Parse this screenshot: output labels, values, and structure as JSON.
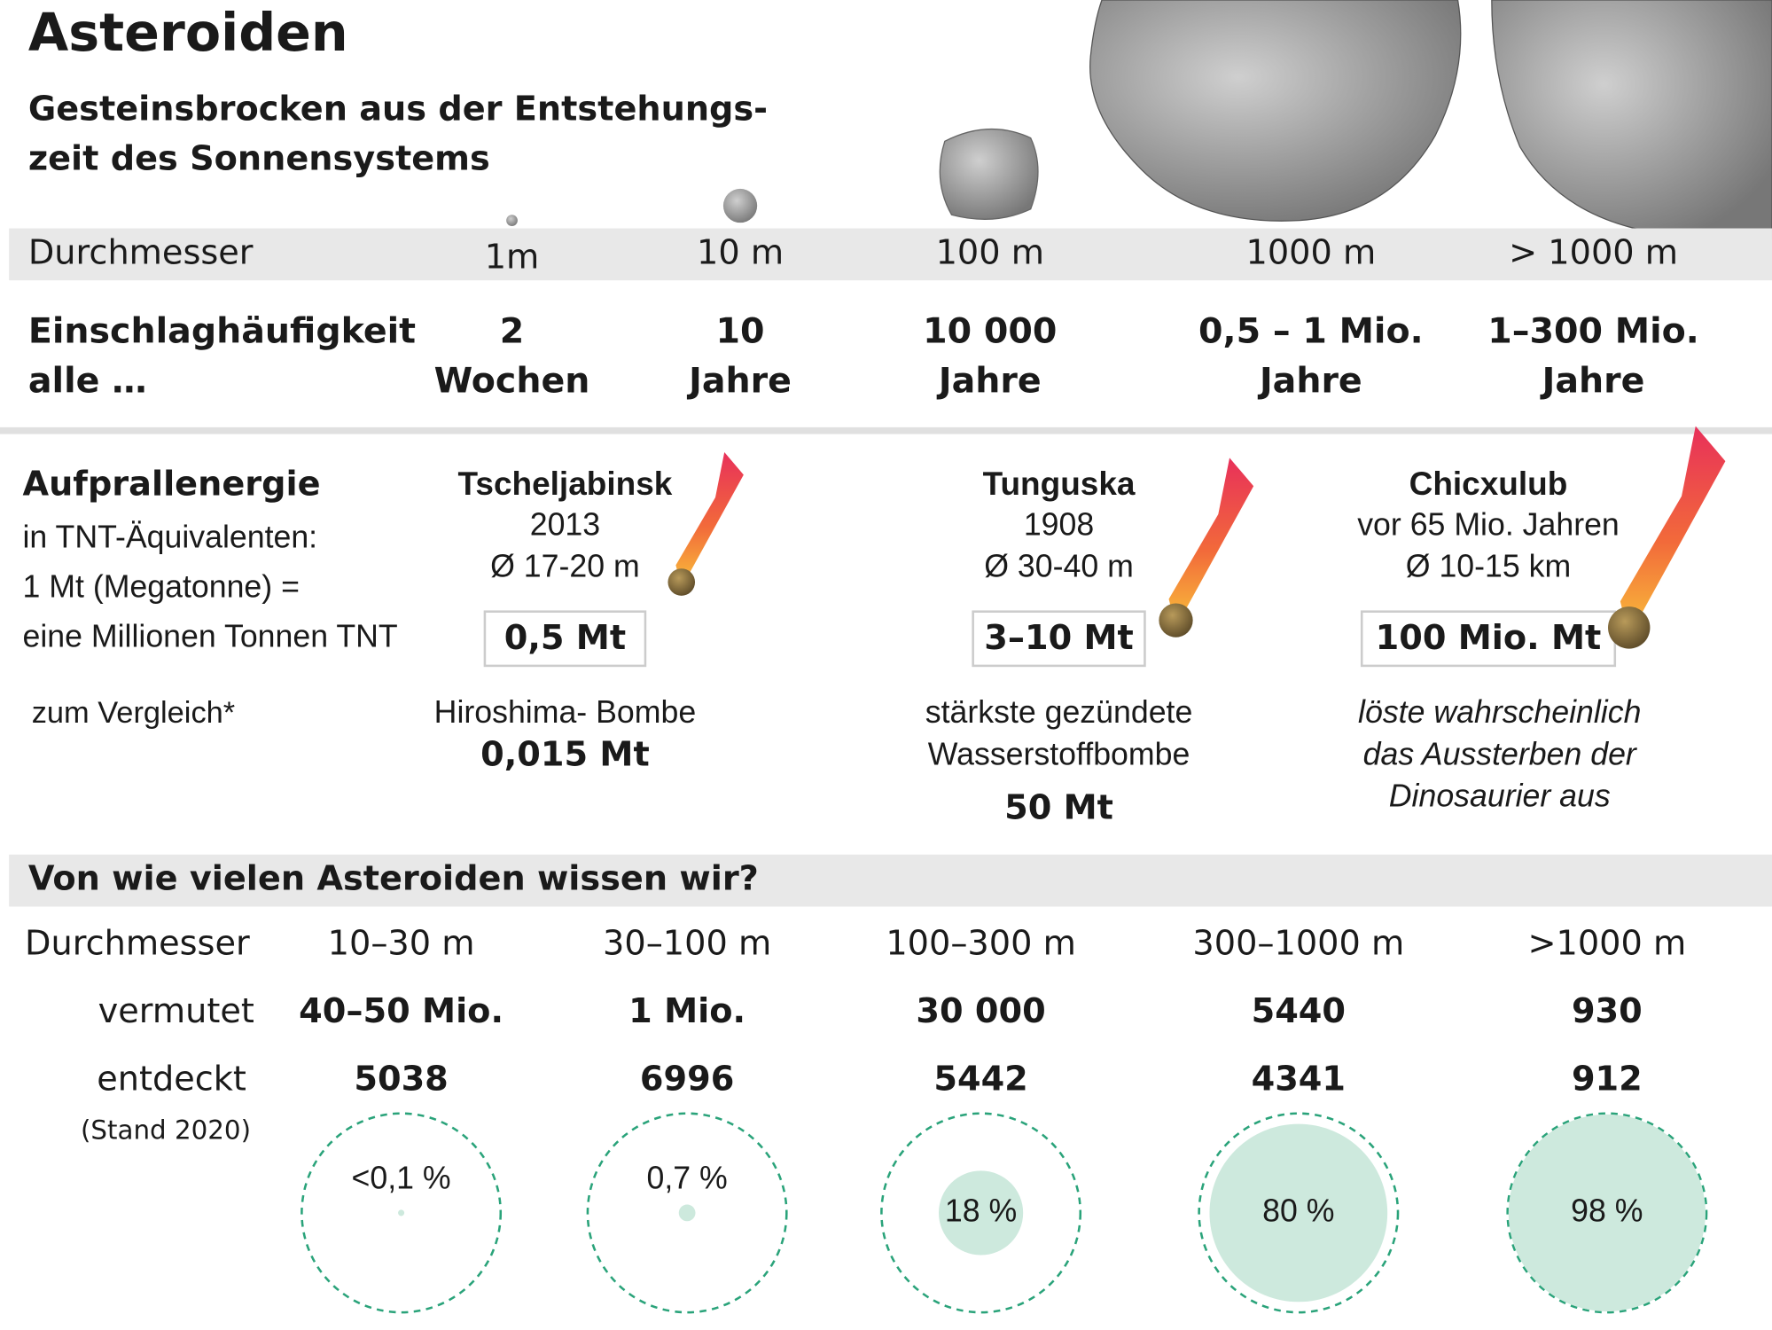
{
  "header": {
    "title": "Asteroiden",
    "subtitle": [
      "Gesteinsbrocken aus der Entstehungs-",
      "zeit des Sonnensystems"
    ]
  },
  "size_table": {
    "diameter_label": "Durchmesser",
    "diameters": [
      "1m",
      "10 m",
      "100 m",
      "1000 m",
      "> 1000 m"
    ],
    "frequency_label": [
      "Einschlaghäufigkeit",
      "alle …"
    ],
    "frequencies": [
      [
        "2",
        "Wochen"
      ],
      [
        "10",
        "Jahre"
      ],
      [
        "10 000",
        "Jahre"
      ],
      [
        "0,5 – 1 Mio.",
        "Jahre"
      ],
      [
        "1–300 Mio.",
        "Jahre"
      ]
    ]
  },
  "energy": {
    "title": "Aufprallenergie",
    "description": [
      "in TNT-Äquivalenten:",
      "1 Mt (Megatonne) =",
      "eine Millionen Tonnen TNT"
    ],
    "comparison_label": "zum Vergleich*",
    "events": [
      {
        "name": "Tscheljabinsk",
        "date": "2013",
        "diameter": "Ø 17-20 m",
        "energy": "0,5 Mt",
        "comparison": [
          "Hiroshima- Bombe"
        ],
        "comparison_value": "0,015 Mt"
      },
      {
        "name": "Tunguska",
        "date": "1908",
        "diameter": "Ø 30-40 m",
        "energy": "3–10 Mt",
        "comparison": [
          "stärkste gezündete",
          "Wasserstoffbombe"
        ],
        "comparison_value": "50 Mt"
      },
      {
        "name": "Chicxulub",
        "date": "vor 65 Mio. Jahren",
        "diameter": "Ø 10-15 km",
        "energy": "100 Mio. Mt",
        "comparison": [
          "löste wahrscheinlich",
          "das Aussterben der",
          "Dinosaurier aus"
        ]
      }
    ]
  },
  "known": {
    "title": "Von wie vielen Asteroiden wissen wir?",
    "diameter_label": "Durchmesser",
    "estimated_label": "vermutet",
    "discovered_label": "entdeckt",
    "status_note": "(Stand 2020)",
    "columns": [
      {
        "diameter": "10–30 m",
        "estimated": "40–50 Mio.",
        "discovered": "5038",
        "share": {
          "value": 0.1,
          "label": "<0,1 %"
        }
      },
      {
        "diameter": "30–100 m",
        "estimated": "1 Mio.",
        "discovered": "6996",
        "share": {
          "value": 0.7,
          "label": "0,7 %"
        }
      },
      {
        "diameter": "100–300 m",
        "estimated": "30 000",
        "discovered": "5442",
        "share": {
          "value": 18,
          "label": "18 %"
        }
      },
      {
        "diameter": "300–1000 m",
        "estimated": "5440",
        "discovered": "4341",
        "share": {
          "value": 80,
          "label": "80 %"
        }
      },
      {
        "diameter": ">1000 m",
        "estimated": "930",
        "discovered": "912",
        "share": {
          "value": 98,
          "label": "98 %"
        }
      }
    ]
  }
}
